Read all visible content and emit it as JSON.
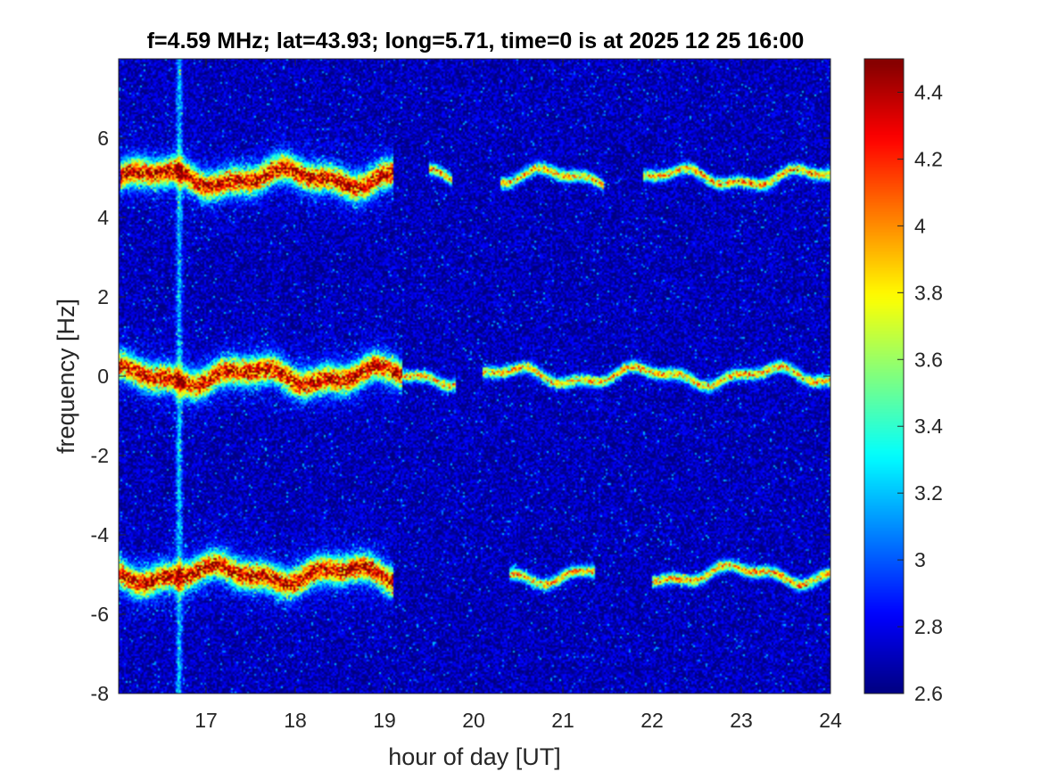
{
  "chart_data": {
    "type": "heatmap",
    "title": "f=4.59 MHz;  lat=43.93; long=5.71, time=0 is at 2025 12 25 16:00",
    "xlabel": "hour of day [UT]",
    "ylabel": "frequency [Hz]",
    "xlim": [
      16.02,
      24
    ],
    "ylim": [
      -8,
      8
    ],
    "xticks": [
      17,
      18,
      19,
      20,
      21,
      22,
      23,
      24
    ],
    "yticks": [
      -8,
      -6,
      -4,
      -2,
      0,
      2,
      4,
      6
    ],
    "colorbar": {
      "limits": [
        2.6,
        4.5
      ],
      "ticks": [
        2.6,
        2.8,
        3,
        3.2,
        3.4,
        3.6,
        3.8,
        4,
        4.2,
        4.4
      ],
      "colormap": "jet"
    },
    "background_level": 2.7,
    "bands": [
      {
        "center_hz": 5.0,
        "segments": [
          [
            16.05,
            19.1
          ],
          [
            19.5,
            19.75
          ],
          [
            20.3,
            21.45
          ],
          [
            21.9,
            24.0
          ]
        ]
      },
      {
        "center_hz": 0.0,
        "segments": [
          [
            16.02,
            19.8
          ],
          [
            20.1,
            24.0
          ]
        ]
      },
      {
        "center_hz": -5.0,
        "segments": [
          [
            16.02,
            19.1
          ],
          [
            20.4,
            21.35
          ],
          [
            22.0,
            24.0
          ]
        ]
      }
    ],
    "vertical_streak_hour": 16.7,
    "grid": false
  }
}
